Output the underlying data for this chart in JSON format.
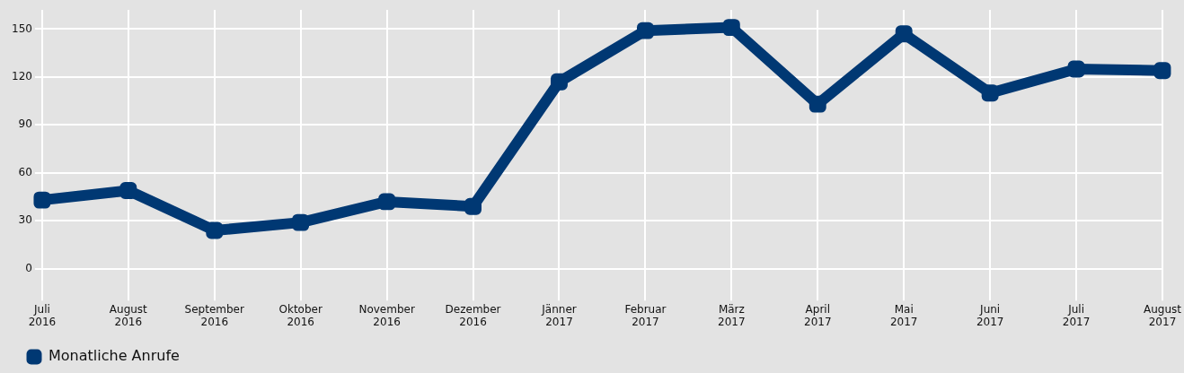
{
  "chart_data": {
    "type": "line",
    "categories": [
      "Juli 2016",
      "August 2016",
      "September 2016",
      "Oktober 2016",
      "November 2016",
      "Dezember 2016",
      "Jänner 2017",
      "Februar 2017",
      "März 2017",
      "April 2017",
      "Mai 2017",
      "Juni 2017",
      "Juli 2017",
      "August 2017"
    ],
    "series": [
      {
        "name": "Monatliche Anrufe",
        "color": "#003873",
        "values": [
          43,
          49,
          24,
          29,
          42,
          39,
          117,
          149,
          151,
          103,
          147,
          110,
          125,
          124
        ]
      }
    ],
    "ylim": [
      -12,
      162
    ],
    "yticks": [
      0,
      30,
      60,
      90,
      120,
      150
    ],
    "grid": true,
    "legend": "bottom left",
    "marker": "square",
    "line_style": "solid"
  }
}
